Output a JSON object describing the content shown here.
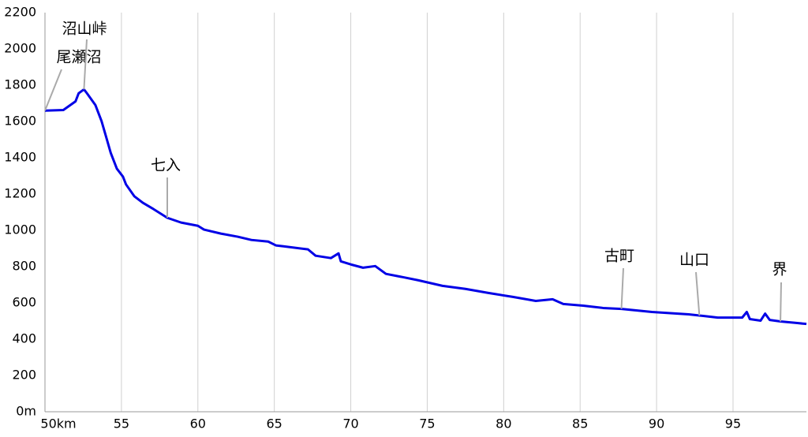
{
  "chart_data": {
    "type": "line",
    "x": [
      50,
      51.2,
      52.0,
      52.2,
      52.55,
      52.75,
      53.3,
      53.7,
      54.0,
      54.3,
      54.7,
      55.1,
      55.3,
      55.85,
      56.4,
      57.1,
      58.0,
      58.9,
      60.0,
      60.4,
      61.5,
      62.6,
      63.5,
      64.6,
      65.1,
      65.6,
      67.2,
      67.7,
      68.7,
      69.2,
      69.35,
      70.0,
      70.8,
      71.6,
      72.3,
      73.4,
      74.4,
      76.0,
      77.5,
      79.0,
      80.6,
      82.1,
      83.2,
      83.9,
      85.2,
      86.5,
      87.7,
      89.7,
      92.1,
      93.5,
      94.0,
      95.6,
      95.9,
      96.1,
      96.8,
      97.1,
      97.4,
      98.1,
      99.2,
      99.8
    ],
    "series": [
      {
        "color": "#0000e6",
        "values": [
          1660,
          1663,
          1711,
          1755,
          1777,
          1755,
          1690,
          1602,
          1515,
          1427,
          1340,
          1296,
          1253,
          1187,
          1152,
          1117,
          1069,
          1043,
          1025,
          1004,
          982,
          965,
          947,
          938,
          917,
          912,
          895,
          860,
          847,
          873,
          829,
          812,
          794,
          803,
          760,
          742,
          725,
          694,
          677,
          655,
          633,
          611,
          620,
          594,
          585,
          572,
          567,
          550,
          537,
          524,
          519,
          519,
          550,
          511,
          502,
          541,
          506,
          498,
          489,
          484
        ]
      }
    ],
    "xlim": [
      50,
      99.8
    ],
    "xticks": [
      {
        "value": 50,
        "label": "50km"
      },
      55,
      60,
      65,
      70,
      75,
      80,
      85,
      90,
      95
    ],
    "ylim": [
      0,
      2200
    ],
    "yticks": [
      {
        "value": 0,
        "label": "0m"
      },
      200,
      400,
      600,
      800,
      1000,
      1200,
      1400,
      1600,
      1800,
      2000,
      2200
    ],
    "grid": "x",
    "annotations": [
      {
        "text": "尾瀬沼",
        "x": 50,
        "y": 1660
      },
      {
        "text": "沼山峠",
        "x": 52.55,
        "y": 1777
      },
      {
        "text": "七入",
        "x": 58.0,
        "y": 1069
      },
      {
        "text": "古町",
        "x": 87.7,
        "y": 567
      },
      {
        "text": "山口",
        "x": 92.8,
        "y": 530
      },
      {
        "text": "界",
        "x": 98.1,
        "y": 498
      }
    ]
  }
}
